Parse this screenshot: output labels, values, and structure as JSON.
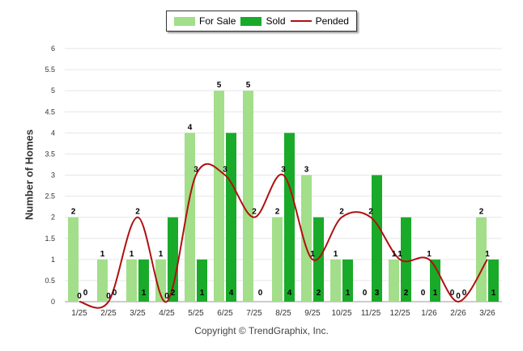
{
  "chart_data": {
    "type": "bar",
    "title": "",
    "xlabel": "",
    "ylabel": "Number of Homes",
    "ylim": [
      0,
      6
    ],
    "yticks": [
      "0",
      "0.5",
      "1",
      "1.5",
      "2",
      "2.5",
      "3",
      "3.5",
      "4",
      "4.5",
      "5",
      "5.5",
      "6"
    ],
    "grid": true,
    "legend_position": "top-center",
    "categories": [
      "1/25",
      "2/25",
      "3/25",
      "4/25",
      "5/25",
      "6/25",
      "7/25",
      "8/25",
      "9/25",
      "10/25",
      "11/25",
      "12/25",
      "1/26",
      "2/26",
      "3/26"
    ],
    "series": [
      {
        "name": "For Sale",
        "type": "bar",
        "color": "#a3de8a",
        "values": [
          2,
          1,
          1,
          1,
          4,
          5,
          5,
          2,
          3,
          1,
          0,
          1,
          0,
          0,
          2
        ]
      },
      {
        "name": "Sold",
        "type": "bar",
        "color": "#1aaa2a",
        "values": [
          0,
          0,
          1,
          2,
          1,
          4,
          0,
          4,
          2,
          1,
          3,
          2,
          1,
          0,
          1
        ]
      },
      {
        "name": "Pended",
        "type": "line",
        "color": "#b01010",
        "values": [
          0,
          0,
          2,
          0,
          3,
          3,
          2,
          3,
          1,
          2,
          2,
          1,
          1,
          0,
          1
        ]
      }
    ]
  },
  "legend": {
    "items": [
      "For Sale",
      "Sold",
      "Pended"
    ]
  },
  "footer": {
    "copyright": "Copyright © TrendGraphix, Inc."
  },
  "icons": {
    "bar_swatch": "bar-swatch-icon",
    "line_swatch": "line-swatch-icon"
  }
}
